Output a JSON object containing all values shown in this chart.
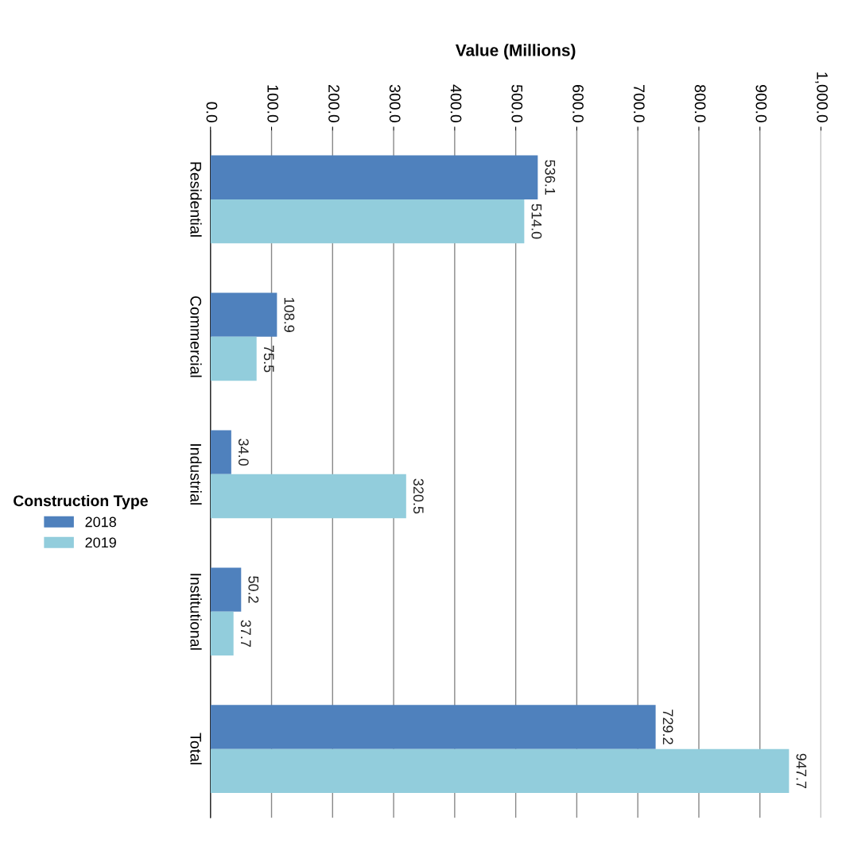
{
  "chart_data": {
    "type": "bar",
    "orientation": "horizontal",
    "xlabel": "Value (Millions)",
    "legend_title": "Construction Type",
    "categories": [
      "Residential",
      "Commercial",
      "Industrial",
      "Institutional",
      "Total"
    ],
    "series": [
      {
        "name": "2018",
        "color": "#4f81bd",
        "values": [
          536.1,
          108.9,
          34.0,
          50.2,
          729.2
        ],
        "value_labels": [
          "536.1",
          "108.9",
          "34.0",
          "50.2",
          "729.2"
        ]
      },
      {
        "name": "2019",
        "color": "#92cddc",
        "values": [
          514.0,
          75.5,
          320.5,
          37.7,
          947.7
        ],
        "value_labels": [
          "514.0",
          "75.5",
          "320.5",
          "37.7",
          "947.7"
        ]
      }
    ],
    "xlim": [
      0,
      1000
    ],
    "xticks": [
      {
        "value": 0,
        "label": "0.0"
      },
      {
        "value": 100,
        "label": "100.0"
      },
      {
        "value": 200,
        "label": "200.0"
      },
      {
        "value": 300,
        "label": "300.0"
      },
      {
        "value": 400,
        "label": "400.0"
      },
      {
        "value": 500,
        "label": "500.0"
      },
      {
        "value": 600,
        "label": "600.0"
      },
      {
        "value": 700,
        "label": "700.0"
      },
      {
        "value": 800,
        "label": "800.0"
      },
      {
        "value": 900,
        "label": "900.0"
      },
      {
        "value": 1000,
        "label": "1,000.0"
      }
    ],
    "grid": "x",
    "legend": "left"
  }
}
